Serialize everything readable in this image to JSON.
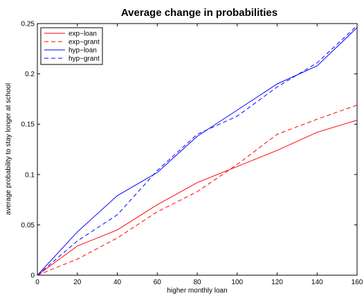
{
  "chart_data": {
    "type": "line",
    "title": "Average change in probabilities",
    "xlabel": "higher monthly loan",
    "ylabel": "average probability to stay longer at school",
    "xlim": [
      0,
      160
    ],
    "ylim": [
      0,
      0.25
    ],
    "xticks": [
      0,
      20,
      40,
      60,
      80,
      100,
      120,
      140,
      160
    ],
    "yticks": [
      0,
      0.05,
      0.1,
      0.15,
      0.2,
      0.25
    ],
    "xtick_labels": [
      "0",
      "20",
      "40",
      "60",
      "80",
      "100",
      "120",
      "140",
      "160"
    ],
    "ytick_labels": [
      "0",
      "0.05",
      "0.1",
      "0.15",
      "0.2",
      "0.25"
    ],
    "grid": false,
    "legend_position": "top-left",
    "x": [
      0,
      20,
      40,
      60,
      80,
      100,
      120,
      140,
      160
    ],
    "series": [
      {
        "name": "exp−loan",
        "color": "#ff0000",
        "dash": "solid",
        "values": [
          0,
          0.029,
          0.045,
          0.07,
          0.092,
          0.108,
          0.124,
          0.142,
          0.154
        ]
      },
      {
        "name": "exp−grant",
        "color": "#ff0000",
        "dash": "dashed",
        "values": [
          0,
          0.016,
          0.037,
          0.063,
          0.083,
          0.11,
          0.14,
          0.155,
          0.169
        ]
      },
      {
        "name": "hyp−loan",
        "color": "#0000ff",
        "dash": "solid",
        "values": [
          0,
          0.043,
          0.079,
          0.102,
          0.138,
          0.164,
          0.19,
          0.208,
          0.246
        ]
      },
      {
        "name": "hyp−grant",
        "color": "#0000ff",
        "dash": "dashed",
        "values": [
          0,
          0.034,
          0.06,
          0.104,
          0.14,
          0.158,
          0.187,
          0.211,
          0.248
        ]
      }
    ]
  }
}
